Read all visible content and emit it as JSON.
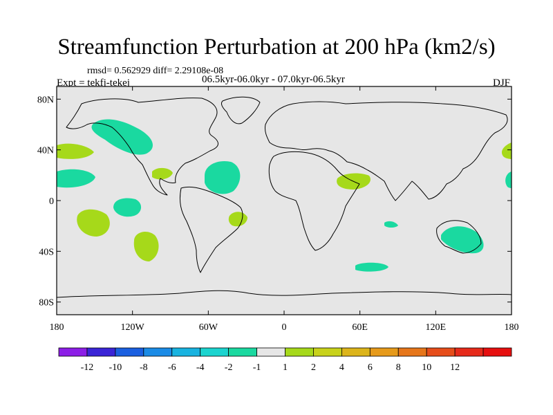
{
  "header": {
    "title": "Streamfunction Perturbation at 200 hPa (km2/s)",
    "stats": "rmsd= 0.562929 diff= 2.29108e-08",
    "periods": "06.5kyr-06.0kyr - 07.0kyr-06.5kyr",
    "experiment": "Expt = tekfj-tekej",
    "season": "DJF"
  },
  "map": {
    "lon_range": [
      -180,
      180
    ],
    "lat_range": [
      -90,
      90
    ],
    "lat_ticks": [
      {
        "value": 80,
        "label": "80N"
      },
      {
        "value": 40,
        "label": "40N"
      },
      {
        "value": 0,
        "label": "0"
      },
      {
        "value": -40,
        "label": "40S"
      },
      {
        "value": -80,
        "label": "80S"
      }
    ],
    "lon_ticks": [
      {
        "value": -180,
        "label": "180"
      },
      {
        "value": -120,
        "label": "120W"
      },
      {
        "value": -60,
        "label": "60W"
      },
      {
        "value": 0,
        "label": "0"
      },
      {
        "value": 60,
        "label": "60E"
      },
      {
        "value": 120,
        "label": "120E"
      },
      {
        "value": 180,
        "label": "180"
      }
    ]
  },
  "chart_data": {
    "type": "heatmap",
    "title": "Streamfunction Perturbation at 200 hPa (km2/s)",
    "colorbar": {
      "colors": [
        "#8c1ee6",
        "#3a24d6",
        "#1a5fe0",
        "#1a8be6",
        "#18b3e0",
        "#1bd4cf",
        "#1ad9a0",
        "#e6e6e6",
        "#a6d91a",
        "#c8d21a",
        "#dcb41a",
        "#e69a1a",
        "#e6761a",
        "#e64d1a",
        "#e62a1a",
        "#e60f0f"
      ],
      "labels": [
        "-12",
        "-10",
        "-8",
        "-6",
        "-4",
        "-2",
        "-1",
        "1",
        "2",
        "4",
        "6",
        "8",
        "10",
        "12"
      ]
    },
    "anomalies": [
      {
        "lon": -145,
        "lat": 52,
        "sign": "negative",
        "level": "-1"
      },
      {
        "lon": -175,
        "lat": 45,
        "sign": "positive",
        "level": "1"
      },
      {
        "lon": -175,
        "lat": 20,
        "sign": "negative",
        "level": "-1"
      },
      {
        "lon": -97,
        "lat": 25,
        "sign": "positive",
        "level": "1"
      },
      {
        "lon": -50,
        "lat": 17,
        "sign": "negative",
        "level": "-1"
      },
      {
        "lon": -125,
        "lat": 0,
        "sign": "negative",
        "level": "-1"
      },
      {
        "lon": -155,
        "lat": -15,
        "sign": "positive",
        "level": "1"
      },
      {
        "lon": -110,
        "lat": -33,
        "sign": "positive",
        "level": "1"
      },
      {
        "lon": -37,
        "lat": -12,
        "sign": "positive",
        "level": "1"
      },
      {
        "lon": 55,
        "lat": 20,
        "sign": "positive",
        "level": "1"
      },
      {
        "lon": 85,
        "lat": -18,
        "sign": "negative",
        "level": "-1"
      },
      {
        "lon": 70,
        "lat": -50,
        "sign": "negative",
        "level": "-1"
      },
      {
        "lon": 145,
        "lat": -28,
        "sign": "negative",
        "level": "-1"
      },
      {
        "lon": 178,
        "lat": 44,
        "sign": "positive",
        "level": "1"
      },
      {
        "lon": 178,
        "lat": 20,
        "sign": "negative",
        "level": "-1"
      }
    ]
  }
}
